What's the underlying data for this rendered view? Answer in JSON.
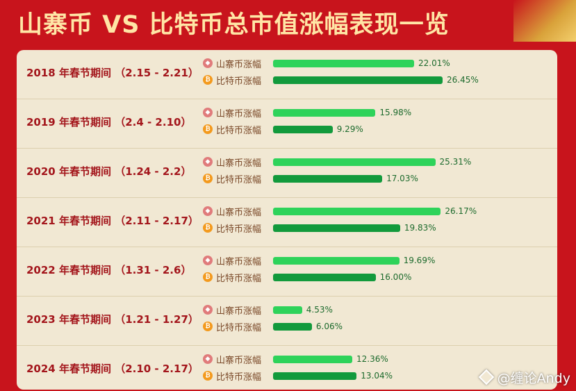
{
  "title": "山寨币 VS 比特币总市值涨幅表现一览",
  "watermark": "@缠论Andy",
  "chart_data": {
    "type": "bar",
    "orientation": "horizontal",
    "title": "山寨币 VS 比特币总市值涨幅表现一览",
    "categories": [
      "2018 年春节期间 （2.15 - 2.21）",
      "2019 年春节期间 （2.4 - 2.10）",
      "2020 年春节期间 （1.24 - 2.2）",
      "2021 年春节期间 （2.11 - 2.17）",
      "2022 年春节期间 （1.31 - 2.6）",
      "2023 年春节期间 （1.21 - 1.27）",
      "2024 年春节期间 （2.10 - 2.17）"
    ],
    "series": [
      {
        "name": "山寨币涨幅",
        "values": [
          22.01,
          15.98,
          25.31,
          26.17,
          19.69,
          4.53,
          12.36
        ],
        "labels": [
          "22.01%",
          "15.98%",
          "25.31%",
          "26.17%",
          "19.69%",
          "4.53%",
          "12.36%"
        ],
        "color": "#2ed35a"
      },
      {
        "name": "比特币涨幅",
        "values": [
          26.45,
          9.29,
          17.03,
          19.83,
          16.0,
          6.06,
          13.04
        ],
        "labels": [
          "26.45%",
          "9.29%",
          "17.03%",
          "19.83%",
          "16.00%",
          "6.06%",
          "13.04%"
        ],
        "color": "#129a3c"
      }
    ],
    "unit": "%",
    "xlim": [
      0,
      26.45
    ],
    "grid": false,
    "legend": "per-row"
  }
}
